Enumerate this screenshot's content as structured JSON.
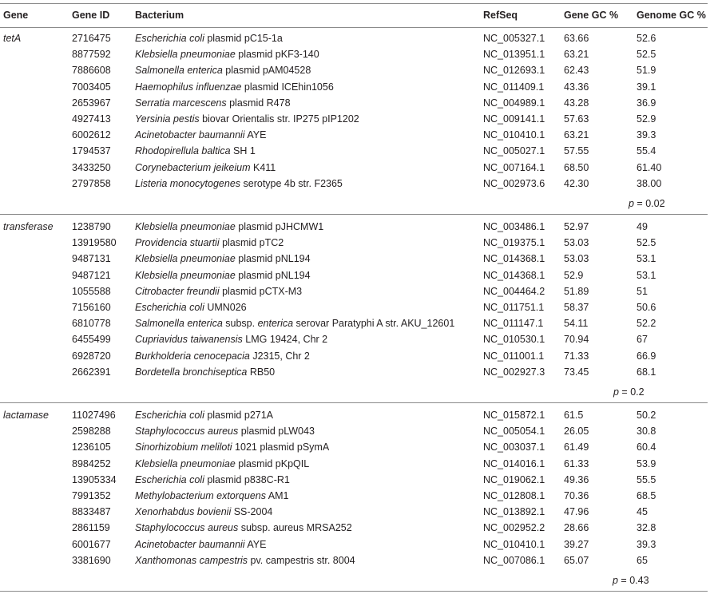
{
  "headers": {
    "gene": "Gene",
    "gene_id": "Gene ID",
    "bacterium": "Bacterium",
    "refseq": "RefSeq",
    "gene_gc": "Gene GC %",
    "genome_gc": "Genome GC %"
  },
  "groups": [
    {
      "gene": "tetA",
      "p_label": "p",
      "p_value": " = 0.02",
      "rows": [
        {
          "id": "2716475",
          "bact_it": "Escherichia coli",
          "bact_rest": " plasmid pC15-1a",
          "refseq": "NC_005327.1",
          "gene_gc": "63.66",
          "genome_gc": "52.6"
        },
        {
          "id": "8877592",
          "bact_it": "Klebsiella pneumoniae",
          "bact_rest": " plasmid pKF3-140",
          "refseq": "NC_013951.1",
          "gene_gc": "63.21",
          "genome_gc": "52.5"
        },
        {
          "id": "7886608",
          "bact_it": "Salmonella enterica",
          "bact_rest": " plasmid pAM04528",
          "refseq": "NC_012693.1",
          "gene_gc": "62.43",
          "genome_gc": "51.9"
        },
        {
          "id": "7003405",
          "bact_it": "Haemophilus influenzae",
          "bact_rest": " plasmid ICEhin1056",
          "refseq": "NC_011409.1",
          "gene_gc": "43.36",
          "genome_gc": "39.1"
        },
        {
          "id": "2653967",
          "bact_it": "Serratia marcescens",
          "bact_rest": " plasmid R478",
          "refseq": "NC_004989.1",
          "gene_gc": "43.28",
          "genome_gc": "36.9"
        },
        {
          "id": "4927413",
          "bact_it": "Yersinia pestis",
          "bact_rest": " biovar Orientalis str. IP275 pIP1202",
          "refseq": "NC_009141.1",
          "gene_gc": "57.63",
          "genome_gc": "52.9"
        },
        {
          "id": "6002612",
          "bact_it": "Acinetobacter baumannii",
          "bact_rest": " AYE",
          "refseq": "NC_010410.1",
          "gene_gc": "63.21",
          "genome_gc": "39.3"
        },
        {
          "id": "1794537",
          "bact_it": "Rhodopirellula baltica",
          "bact_rest": " SH 1",
          "refseq": "NC_005027.1",
          "gene_gc": "57.55",
          "genome_gc": "55.4"
        },
        {
          "id": "3433250",
          "bact_it": "Corynebacterium jeikeium",
          "bact_rest": " K411",
          "refseq": "NC_007164.1",
          "gene_gc": "68.50",
          "genome_gc": "61.40"
        },
        {
          "id": "2797858",
          "bact_it": "Listeria monocytogenes",
          "bact_rest": " serotype 4b str. F2365",
          "refseq": "NC_002973.6",
          "gene_gc": "42.30",
          "genome_gc": "38.00"
        }
      ]
    },
    {
      "gene": "transferase",
      "p_label": "p",
      "p_value": " = 0.2",
      "rows": [
        {
          "id": "1238790",
          "bact_it": "Klebsiella pneumoniae",
          "bact_rest": " plasmid pJHCMW1",
          "refseq": "NC_003486.1",
          "gene_gc": "52.97",
          "genome_gc": "49"
        },
        {
          "id": "13919580",
          "bact_it": "Providencia stuartii",
          "bact_rest": " plasmid pTC2",
          "refseq": "NC_019375.1",
          "gene_gc": "53.03",
          "genome_gc": "52.5"
        },
        {
          "id": "9487131",
          "bact_it": "Klebsiella pneumoniae",
          "bact_rest": " plasmid pNL194",
          "refseq": "NC_014368.1",
          "gene_gc": "53.03",
          "genome_gc": "53.1"
        },
        {
          "id": "9487121",
          "bact_it": "Klebsiella pneumoniae",
          "bact_rest": " plasmid pNL194",
          "refseq": "NC_014368.1",
          "gene_gc": "52.9",
          "genome_gc": "53.1"
        },
        {
          "id": "1055588",
          "bact_it": "Citrobacter freundii",
          "bact_rest": " plasmid pCTX-M3",
          "refseq": "NC_004464.2",
          "gene_gc": "51.89",
          "genome_gc": "51"
        },
        {
          "id": "7156160",
          "bact_it": "Escherichia coli",
          "bact_rest": " UMN026",
          "refseq": "NC_011751.1",
          "gene_gc": "58.37",
          "genome_gc": "50.6"
        },
        {
          "id": "6810778",
          "bact_it": "Salmonella enterica",
          "bact_rest": " subsp. ",
          "bact_it2": "enterica",
          "bact_rest2": " serovar Paratyphi A str. AKU_12601",
          "refseq": "NC_011147.1",
          "gene_gc": "54.11",
          "genome_gc": "52.2"
        },
        {
          "id": "6455499",
          "bact_it": "Cupriavidus taiwanensis",
          "bact_rest": " LMG 19424, Chr 2",
          "refseq": "NC_010530.1",
          "gene_gc": "70.94",
          "genome_gc": "67"
        },
        {
          "id": "6928720",
          "bact_it": "Burkholderia cenocepacia",
          "bact_rest": " J2315, Chr 2",
          "refseq": "NC_011001.1",
          "gene_gc": "71.33",
          "genome_gc": "66.9"
        },
        {
          "id": "2662391",
          "bact_it": "Bordetella bronchiseptica",
          "bact_rest": " RB50",
          "refseq": "NC_002927.3",
          "gene_gc": "73.45",
          "genome_gc": "68.1"
        }
      ]
    },
    {
      "gene": "lactamase",
      "p_label": "p",
      "p_value": " = 0.43",
      "rows": [
        {
          "id": "11027496",
          "bact_it": "Escherichia coli",
          "bact_rest": " plasmid p271A",
          "refseq": "NC_015872.1",
          "gene_gc": "61.5",
          "genome_gc": "50.2"
        },
        {
          "id": "2598288",
          "bact_it": "Staphylococcus aureus",
          "bact_rest": " plasmid pLW043",
          "refseq": "NC_005054.1",
          "gene_gc": "26.05",
          "genome_gc": "30.8"
        },
        {
          "id": "1236105",
          "bact_it": "Sinorhizobium meliloti",
          "bact_rest": " 1021 plasmid pSymA",
          "refseq": "NC_003037.1",
          "gene_gc": "61.49",
          "genome_gc": "60.4"
        },
        {
          "id": "8984252",
          "bact_it": "Klebsiella pneumoniae",
          "bact_rest": " plasmid pKpQIL",
          "refseq": "NC_014016.1",
          "gene_gc": "61.33",
          "genome_gc": "53.9"
        },
        {
          "id": "13905334",
          "bact_it": "Escherichia coli",
          "bact_rest": " plasmid p838C-R1",
          "refseq": "NC_019062.1",
          "gene_gc": "49.36",
          "genome_gc": "55.5"
        },
        {
          "id": "7991352",
          "bact_it": "Methylobacterium extorquens",
          "bact_rest": " AM1",
          "refseq": "NC_012808.1",
          "gene_gc": "70.36",
          "genome_gc": "68.5"
        },
        {
          "id": "8833487",
          "bact_it": "Xenorhabdus bovienii",
          "bact_rest": " SS-2004",
          "refseq": "NC_013892.1",
          "gene_gc": "47.96",
          "genome_gc": "45"
        },
        {
          "id": "2861159",
          "bact_it": "Staphylococcus aureus",
          "bact_rest": " subsp. aureus MRSA252",
          "refseq": "NC_002952.2",
          "gene_gc": "28.66",
          "genome_gc": "32.8"
        },
        {
          "id": "6001677",
          "bact_it": "Acinetobacter baumannii",
          "bact_rest": " AYE",
          "refseq": "NC_010410.1",
          "gene_gc": "39.27",
          "genome_gc": "39.3"
        },
        {
          "id": "3381690",
          "bact_it": "Xanthomonas campestris",
          "bact_rest": " pv. campestris str. 8004",
          "refseq": "NC_007086.1",
          "gene_gc": "65.07",
          "genome_gc": "65"
        }
      ]
    }
  ]
}
